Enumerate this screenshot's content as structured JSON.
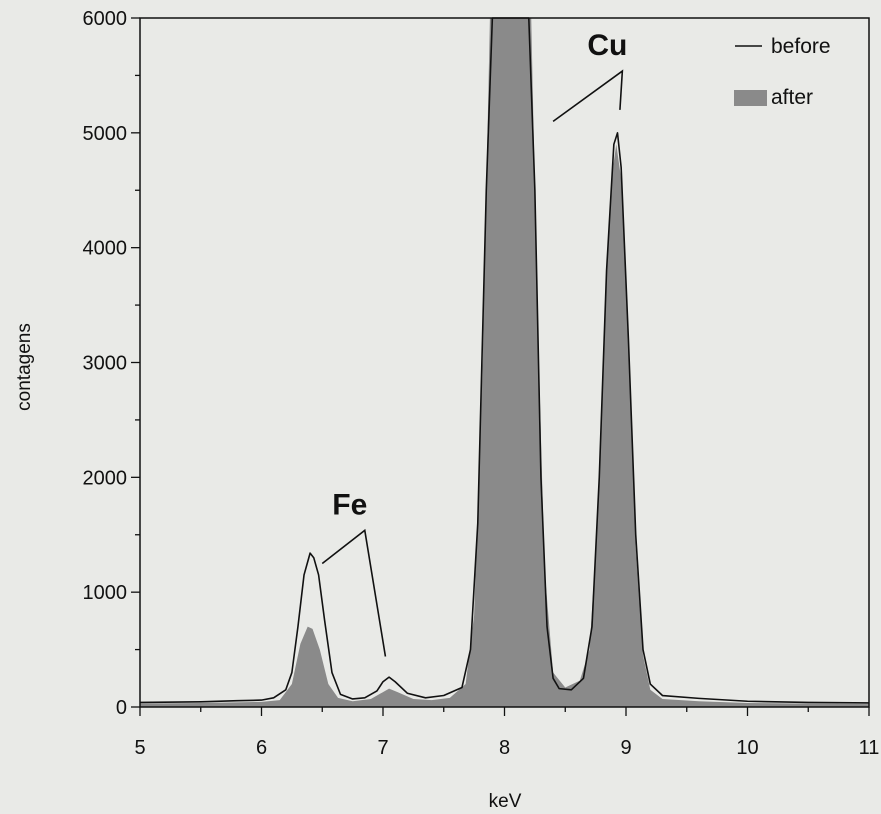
{
  "chart_data": {
    "type": "area",
    "title": "",
    "xlabel": "keV",
    "ylabel": "contagens",
    "xlim": [
      5,
      11
    ],
    "ylim": [
      0,
      6000
    ],
    "x_ticks": [
      5,
      6,
      7,
      8,
      9,
      10,
      11
    ],
    "y_ticks": [
      0,
      1000,
      2000,
      3000,
      4000,
      5000,
      6000
    ],
    "grid": false,
    "legend_position": "top-right",
    "colors": {
      "before": "#111111",
      "after": "#8a8a8a",
      "background": "#e9eae7"
    },
    "series": [
      {
        "name": "before",
        "style": "line",
        "points": [
          [
            5.0,
            40
          ],
          [
            5.5,
            45
          ],
          [
            5.8,
            55
          ],
          [
            6.0,
            60
          ],
          [
            6.1,
            80
          ],
          [
            6.2,
            150
          ],
          [
            6.25,
            300
          ],
          [
            6.3,
            700
          ],
          [
            6.35,
            1150
          ],
          [
            6.4,
            1340
          ],
          [
            6.43,
            1300
          ],
          [
            6.47,
            1150
          ],
          [
            6.52,
            750
          ],
          [
            6.58,
            300
          ],
          [
            6.65,
            110
          ],
          [
            6.75,
            70
          ],
          [
            6.85,
            80
          ],
          [
            6.95,
            140
          ],
          [
            7.0,
            220
          ],
          [
            7.05,
            260
          ],
          [
            7.1,
            220
          ],
          [
            7.2,
            120
          ],
          [
            7.35,
            80
          ],
          [
            7.5,
            100
          ],
          [
            7.65,
            170
          ],
          [
            7.72,
            500
          ],
          [
            7.78,
            1600
          ],
          [
            7.85,
            4500
          ],
          [
            7.9,
            6000
          ],
          [
            8.2,
            6000
          ],
          [
            8.25,
            4500
          ],
          [
            8.3,
            2000
          ],
          [
            8.35,
            700
          ],
          [
            8.4,
            250
          ],
          [
            8.45,
            160
          ],
          [
            8.55,
            150
          ],
          [
            8.65,
            250
          ],
          [
            8.72,
            700
          ],
          [
            8.78,
            2000
          ],
          [
            8.84,
            3800
          ],
          [
            8.9,
            4900
          ],
          [
            8.93,
            5000
          ],
          [
            8.96,
            4700
          ],
          [
            9.02,
            3200
          ],
          [
            9.08,
            1500
          ],
          [
            9.14,
            500
          ],
          [
            9.2,
            200
          ],
          [
            9.3,
            100
          ],
          [
            9.6,
            75
          ],
          [
            10.0,
            50
          ],
          [
            10.5,
            40
          ],
          [
            11.0,
            35
          ]
        ]
      },
      {
        "name": "after",
        "style": "fill",
        "points": [
          [
            5.0,
            30
          ],
          [
            5.5,
            35
          ],
          [
            6.0,
            45
          ],
          [
            6.15,
            60
          ],
          [
            6.25,
            200
          ],
          [
            6.32,
            550
          ],
          [
            6.38,
            700
          ],
          [
            6.42,
            680
          ],
          [
            6.48,
            500
          ],
          [
            6.55,
            200
          ],
          [
            6.63,
            80
          ],
          [
            6.75,
            50
          ],
          [
            6.9,
            70
          ],
          [
            7.0,
            130
          ],
          [
            7.05,
            160
          ],
          [
            7.12,
            130
          ],
          [
            7.25,
            70
          ],
          [
            7.4,
            60
          ],
          [
            7.55,
            80
          ],
          [
            7.68,
            200
          ],
          [
            7.75,
            800
          ],
          [
            7.82,
            3000
          ],
          [
            7.88,
            6000
          ],
          [
            8.22,
            6000
          ],
          [
            8.27,
            3500
          ],
          [
            8.33,
            1200
          ],
          [
            8.4,
            300
          ],
          [
            8.5,
            170
          ],
          [
            8.62,
            230
          ],
          [
            8.7,
            500
          ],
          [
            8.77,
            1700
          ],
          [
            8.83,
            3500
          ],
          [
            8.88,
            4600
          ],
          [
            8.92,
            4900
          ],
          [
            8.96,
            4600
          ],
          [
            9.02,
            3100
          ],
          [
            9.08,
            1400
          ],
          [
            9.14,
            450
          ],
          [
            9.2,
            150
          ],
          [
            9.3,
            70
          ],
          [
            9.6,
            50
          ],
          [
            10.0,
            35
          ],
          [
            11.0,
            25
          ]
        ]
      }
    ],
    "annotations": [
      {
        "text": "Cu",
        "x": 8.97,
        "y": 5660,
        "points_to": [
          [
            8.4,
            5100
          ],
          [
            8.95,
            5200
          ]
        ]
      },
      {
        "text": "Fe",
        "x": 6.85,
        "y": 1660,
        "points_to": [
          [
            6.5,
            1250
          ],
          [
            7.02,
            440
          ]
        ]
      }
    ]
  }
}
